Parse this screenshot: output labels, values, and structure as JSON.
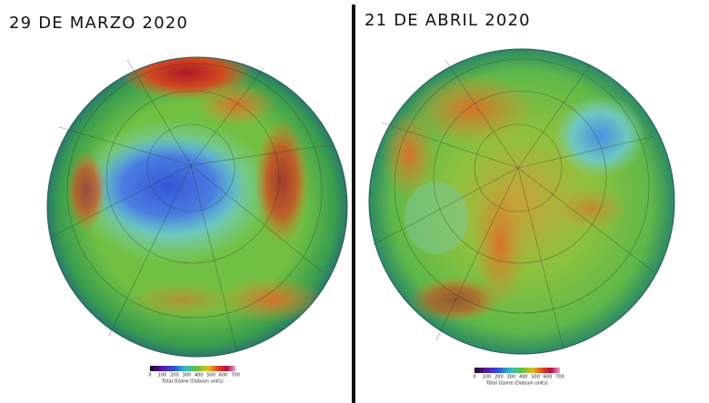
{
  "panels": [
    {
      "title": "29 DE MARZO 2020",
      "colorbar": {
        "ticks": [
          "0",
          "100",
          "200",
          "300",
          "400",
          "500",
          "600",
          "700"
        ],
        "caption": "Total Ozone (Dobson units)"
      }
    },
    {
      "title": "21 DE ABRIL 2020",
      "colorbar": {
        "ticks": [
          "0",
          "100",
          "200",
          "300",
          "400",
          "500",
          "600",
          "700"
        ],
        "caption": "Total Ozone (Dobson units)"
      }
    }
  ]
}
